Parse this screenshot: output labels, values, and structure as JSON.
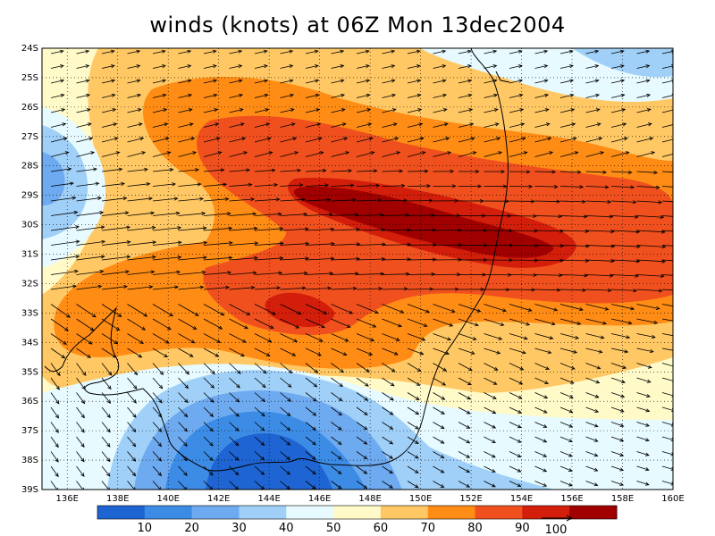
{
  "title": "winds (knots) at 06Z Mon 13dec2004",
  "map": {
    "lon_range": [
      135,
      160
    ],
    "lat_range": [
      -39,
      -24
    ],
    "lon_ticks": [
      "136E",
      "138E",
      "140E",
      "142E",
      "144E",
      "146E",
      "148E",
      "150E",
      "152E",
      "154E",
      "156E",
      "158E",
      "160E"
    ],
    "lat_ticks": [
      "24S",
      "25S",
      "26S",
      "27S",
      "28S",
      "29S",
      "30S",
      "31S",
      "32S",
      "33S",
      "34S",
      "35S",
      "36S",
      "37S",
      "38S",
      "39S"
    ],
    "grid": "dotted"
  },
  "colorbar": {
    "labels": [
      "10",
      "20",
      "30",
      "40",
      "50",
      "60",
      "70",
      "80",
      "90"
    ],
    "colors": [
      "#1e64d2",
      "#3c8ce6",
      "#6eaaf0",
      "#a0d0f8",
      "#e6faff",
      "#fffac8",
      "#ffc864",
      "#ff8c14",
      "#f0501e",
      "#d21e0a",
      "#a00000"
    ]
  },
  "vector_reference": {
    "label": "100"
  }
}
